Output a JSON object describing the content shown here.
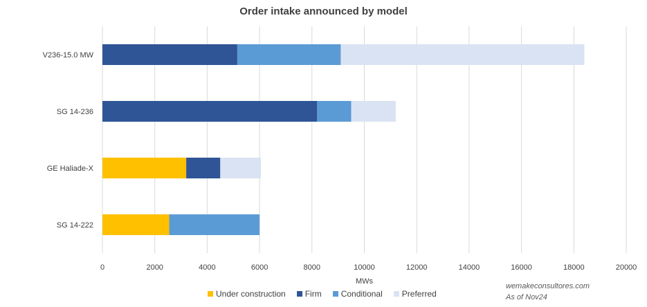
{
  "chart_data": {
    "type": "bar",
    "orientation": "horizontal",
    "stacked": true,
    "title": "Order intake announced by model",
    "xlabel": "MWs",
    "ylabel": "",
    "xlim": [
      0,
      20000
    ],
    "x_ticks": [
      "0",
      "2000",
      "4000",
      "6000",
      "8000",
      "10000",
      "12000",
      "14000",
      "16000",
      "18000",
      "20000"
    ],
    "categories": [
      "V236-15.0 MW",
      "SG 14-236",
      "GE Haliade-X",
      "SG 14-222"
    ],
    "series": [
      {
        "name": "Under construction",
        "color": "#FFC000",
        "values": [
          0,
          0,
          3200,
          2550
        ]
      },
      {
        "name": "Firm",
        "color": "#2F5597",
        "values": [
          5150,
          8200,
          1300,
          0
        ]
      },
      {
        "name": "Conditional",
        "color": "#5B9BD5",
        "values": [
          3950,
          1300,
          0,
          3450
        ]
      },
      {
        "name": "Preferred",
        "color": "#DAE3F3",
        "values": [
          9300,
          1700,
          1550,
          0
        ]
      }
    ],
    "grid": true,
    "legend_position": "bottom"
  },
  "watermark": {
    "line1": "wemakeconsultores.com",
    "line2": "As of Nov24"
  }
}
